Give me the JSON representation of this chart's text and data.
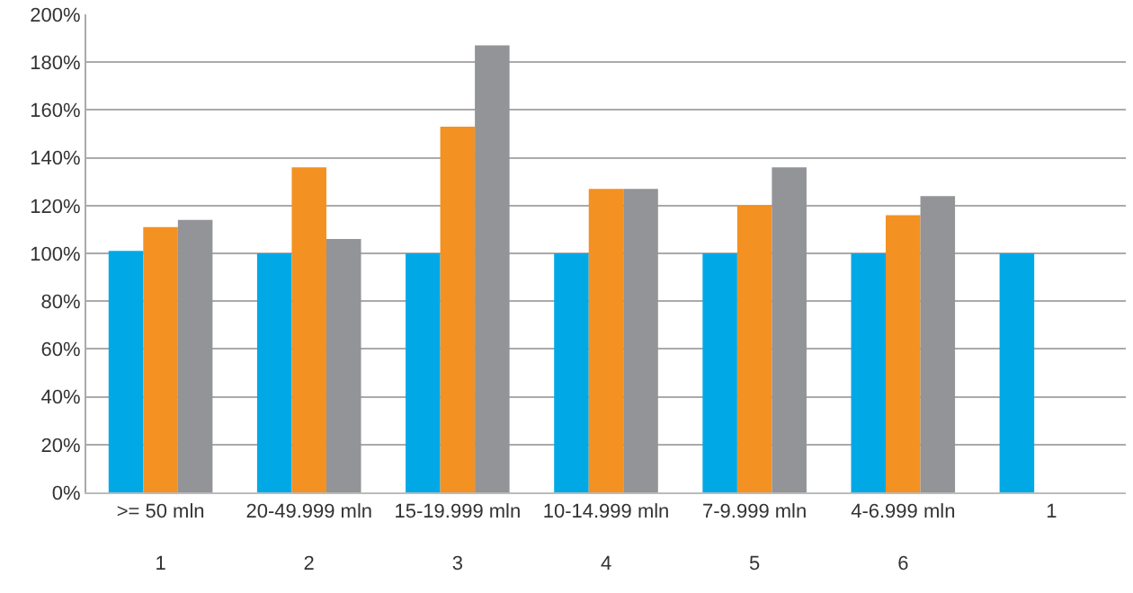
{
  "chart_data": {
    "type": "bar",
    "categories": [
      ">= 50 mln\n1",
      "20-49.999 mln\n2",
      "15-19.999 mln\n3",
      "10-14.999 mln\n4",
      "7-9.999 mln\n5",
      "4-6.999 mln\n6",
      "1"
    ],
    "series": [
      {
        "color": "#00a9e6",
        "values": [
          101,
          100,
          100,
          100,
          100,
          100,
          100
        ]
      },
      {
        "color": "#f39122",
        "values": [
          111,
          136,
          153,
          127,
          120,
          116,
          null
        ]
      },
      {
        "color": "#929497",
        "values": [
          114,
          106,
          187,
          127,
          136,
          124,
          null
        ]
      }
    ],
    "ylim": [
      0,
      200
    ],
    "yticks": [
      {
        "value": 0,
        "label": "0%"
      },
      {
        "value": 20,
        "label": "20%"
      },
      {
        "value": 40,
        "label": "40%"
      },
      {
        "value": 60,
        "label": "60%"
      },
      {
        "value": 80,
        "label": "80%"
      },
      {
        "value": 100,
        "label": "100%"
      },
      {
        "value": 120,
        "label": "120%"
      },
      {
        "value": 140,
        "label": "140%"
      },
      {
        "value": 160,
        "label": "160%"
      },
      {
        "value": 180,
        "label": "180%"
      },
      {
        "value": 200,
        "label": "200%"
      }
    ],
    "grid": "y"
  }
}
